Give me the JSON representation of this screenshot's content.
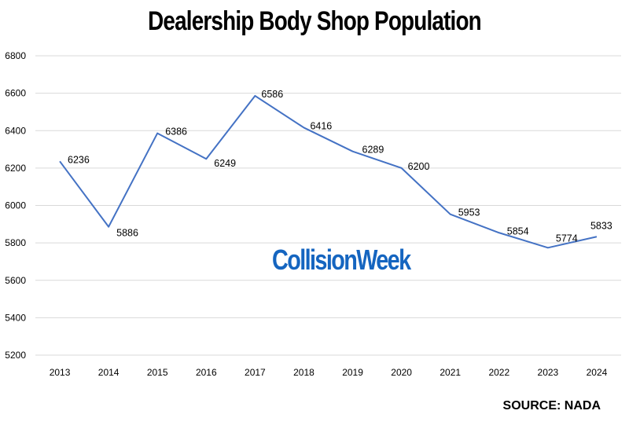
{
  "chart_data": {
    "type": "line",
    "title": "Dealership Body Shop Population",
    "xlabel": "",
    "ylabel": "",
    "categories": [
      "2013",
      "2014",
      "2015",
      "2016",
      "2017",
      "2018",
      "2019",
      "2020",
      "2021",
      "2022",
      "2023",
      "2024"
    ],
    "series": [
      {
        "values": [
          6236,
          5886,
          6386,
          6249,
          6586,
          6416,
          6289,
          6200,
          5953,
          5854,
          5774,
          5833
        ]
      }
    ],
    "ylim": [
      5200,
      6800
    ],
    "yticks": [
      5200,
      5400,
      5600,
      5800,
      6000,
      6200,
      6400,
      6600,
      6800
    ],
    "grid": true,
    "line_color": "#4472c4",
    "data_labels": true
  },
  "watermark": "CollisionWeek",
  "source": "SOURCE: NADA",
  "colors": {
    "line": "#4472c4",
    "watermark": "#1565c0",
    "grid": "#d9d9d9"
  }
}
